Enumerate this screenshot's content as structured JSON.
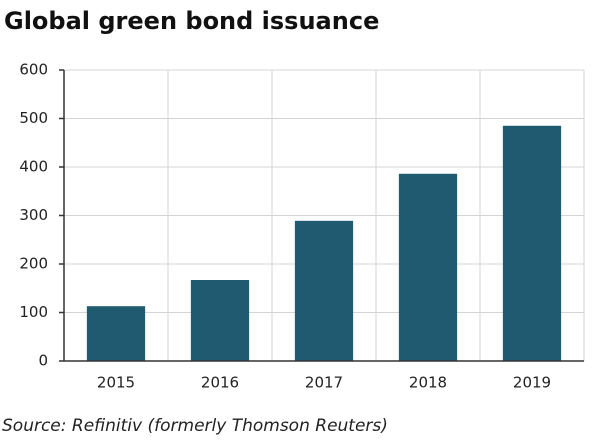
{
  "chart_data": {
    "type": "bar",
    "title": "Global green bond issuance",
    "source": "Source: Refinitiv (formerly Thomson Reuters)",
    "categories": [
      "2015",
      "2016",
      "2017",
      "2018",
      "2019"
    ],
    "values": [
      113,
      167,
      289,
      386,
      485
    ],
    "color": "#1f5a70",
    "ylim": [
      0,
      600
    ],
    "yticks": [
      0,
      100,
      200,
      300,
      400,
      500,
      600
    ],
    "grid": true
  }
}
